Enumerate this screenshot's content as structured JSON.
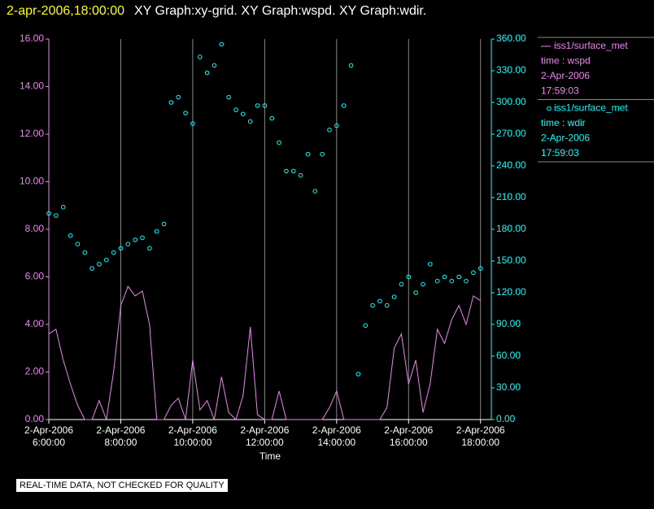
{
  "chart_data": {
    "type": "xy",
    "title_time": "2-apr-2006,18:00:00",
    "title": "XY Graph:xy-grid.  XY Graph:wspd.  XY Graph:wdir.",
    "x_label": "Time",
    "notice": "REAL-TIME DATA, NOT CHECKED FOR QUALITY",
    "x": [
      6.0,
      6.2,
      6.4,
      6.6,
      6.8,
      7.0,
      7.2,
      7.4,
      7.6,
      7.8,
      8.0,
      8.2,
      8.4,
      8.6,
      8.8,
      9.0,
      9.2,
      9.4,
      9.6,
      9.8,
      10.0,
      10.2,
      10.4,
      10.6,
      10.8,
      11.0,
      11.2,
      11.4,
      11.6,
      11.8,
      12.0,
      12.2,
      12.4,
      12.6,
      12.8,
      13.0,
      13.2,
      13.4,
      13.6,
      13.8,
      14.0,
      14.2,
      14.4,
      14.6,
      14.8,
      15.0,
      15.2,
      15.4,
      15.6,
      15.8,
      16.0,
      16.2,
      16.4,
      16.6,
      16.8,
      17.0,
      17.2,
      17.4,
      17.6,
      17.8,
      18.0
    ],
    "xlim": [
      6,
      18.3
    ],
    "xticks": [
      {
        "value": 6,
        "label": "2-Apr-2006\n6:00:00"
      },
      {
        "value": 8,
        "label": "2-Apr-2006\n8:00:00"
      },
      {
        "value": 10,
        "label": "2-Apr-2006\n10:00:00"
      },
      {
        "value": 12,
        "label": "2-Apr-2006\n12:00:00"
      },
      {
        "value": 14,
        "label": "2-Apr-2006\n14:00:00"
      },
      {
        "value": 16,
        "label": "2-Apr-2006\n16:00:00"
      },
      {
        "value": 18,
        "label": "2-Apr-2006\n18:00:00"
      }
    ],
    "ylim": [
      0,
      16
    ],
    "yticks": [
      {
        "value": 0,
        "label": "0.00"
      },
      {
        "value": 2,
        "label": "2.00"
      },
      {
        "value": 4,
        "label": "4.00"
      },
      {
        "value": 6,
        "label": "6.00"
      },
      {
        "value": 8,
        "label": "8.00"
      },
      {
        "value": 10,
        "label": "10.00"
      },
      {
        "value": 12,
        "label": "12.00"
      },
      {
        "value": 14,
        "label": "14.00"
      },
      {
        "value": 16,
        "label": "16.00"
      }
    ],
    "y2lim": [
      0,
      360
    ],
    "y2ticks": [
      {
        "value": 0,
        "label": "0.00"
      },
      {
        "value": 30,
        "label": "30.00"
      },
      {
        "value": 60,
        "label": "60.00"
      },
      {
        "value": 90,
        "label": "90.00"
      },
      {
        "value": 120,
        "label": "120.00"
      },
      {
        "value": 150,
        "label": "150.00"
      },
      {
        "value": 180,
        "label": "180.00"
      },
      {
        "value": 210,
        "label": "210.00"
      },
      {
        "value": 240,
        "label": "240.00"
      },
      {
        "value": 270,
        "label": "270.00"
      },
      {
        "value": 300,
        "label": "300.00"
      },
      {
        "value": 330,
        "label": "330.00"
      },
      {
        "value": 360,
        "label": "360.00"
      }
    ],
    "grid": true,
    "series": [
      {
        "name": "iss1/surface_met",
        "type": "line",
        "color": "#ee82ee",
        "legend_lines": [
          "time : wspd",
          "2-Apr-2006",
          "17:59:03"
        ],
        "values": [
          3.6,
          3.8,
          2.5,
          1.5,
          0.6,
          0,
          0,
          0.8,
          0,
          2.0,
          4.8,
          5.6,
          5.2,
          5.4,
          4.0,
          0,
          0,
          0.6,
          0.9,
          0,
          2.5,
          0.4,
          0.8,
          0,
          1.8,
          0.3,
          0,
          1.0,
          3.9,
          0.2,
          0,
          0,
          1.2,
          0,
          0,
          0,
          0,
          0,
          0,
          0.5,
          1.2,
          0,
          0,
          0,
          0,
          0,
          0,
          0.5,
          3.0,
          3.6,
          1.5,
          2.5,
          0.3,
          1.5,
          3.8,
          3.2,
          4.2,
          4.8,
          4.0,
          5.2,
          5.0
        ]
      },
      {
        "name": "iss1/surface_met",
        "type": "scatter",
        "axis": "y2",
        "color": "#00ffff",
        "legend_lines": [
          "time : wdir",
          "2-Apr-2006",
          "17:59:03"
        ],
        "values": [
          195,
          193,
          201,
          174,
          166,
          158,
          143,
          147,
          151,
          158,
          162,
          166,
          170,
          172,
          162,
          178,
          185,
          300,
          305,
          290,
          280,
          343,
          328,
          335,
          355,
          305,
          293,
          289,
          282,
          297,
          297,
          285,
          262,
          235,
          235,
          231,
          251,
          216,
          251,
          274,
          278,
          297,
          335,
          43,
          89,
          108,
          112,
          108,
          116,
          128,
          135,
          120,
          128,
          147,
          131,
          135,
          131,
          135,
          131,
          139,
          143
        ]
      }
    ]
  }
}
